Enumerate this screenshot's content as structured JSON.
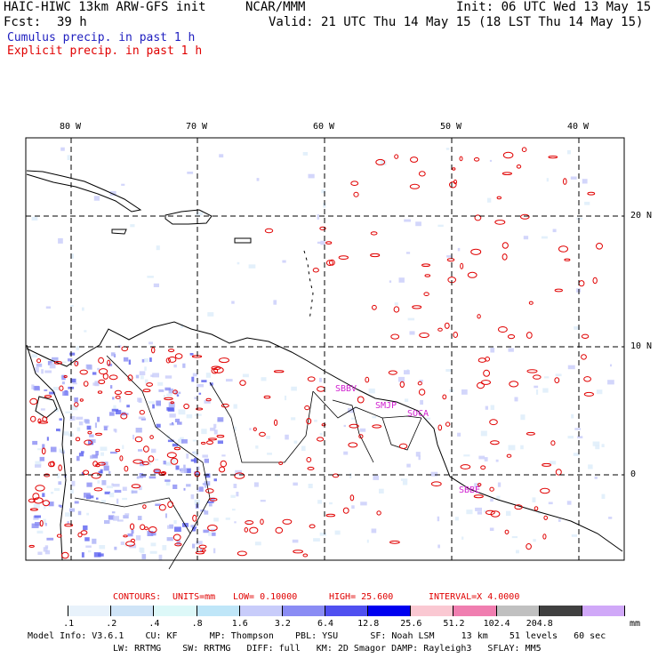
{
  "header": {
    "model_title": "HAIC-HIWC 13km ARW-GFS init",
    "center": "NCAR/MMM",
    "init": "Init: 06 UTC Wed 13 May 15",
    "fcst_label": "Fcst:",
    "fcst_value": "39 h",
    "valid": "Valid: 21 UTC Thu 14 May 15 (18 LST Thu 14 May 15)",
    "cumulus_label": "Cumulus precip. in past 1 h",
    "explicit_label": "Explicit precip. in past 1 h"
  },
  "map": {
    "lon_labels": [
      "80 W",
      "70 W",
      "60 W",
      "50 W",
      "40 W"
    ],
    "lat_labels": [
      "20 N",
      "10 N",
      "0"
    ],
    "stations": [
      "SBBV",
      "SMJP",
      "SOCA",
      "SBBE"
    ]
  },
  "contours": {
    "label": "CONTOURS:",
    "units": "UNITS=mm",
    "low": "LOW= 0.10000",
    "high": "HIGH= 25.600",
    "interval": "INTERVAL=X 4.0000"
  },
  "colorbar": {
    "unit": "mm",
    "ticks": [
      ".1",
      ".2",
      ".4",
      ".8",
      "1.6",
      "3.2",
      "6.4",
      "12.8",
      "25.6",
      "51.2",
      "102.4",
      "204.8"
    ],
    "colors": [
      "#ffffff",
      "#e8f2fb",
      "#cfe4f7",
      "#ddf8f8",
      "#bfe6f8",
      "#c8ccfa",
      "#8a8cf4",
      "#5050f0",
      "#0000f0",
      "#fac8d2",
      "#f07eb0",
      "#c0c0c0",
      "#404040",
      "#d0a8f8"
    ]
  },
  "footer": {
    "line1": "Model Info: V3.6.1    CU: KF      MP: Thompson    PBL: YSU      SF: Noah LSM     13 km    51 levels   60 sec",
    "line2": "LW: RRTMG    SW: RRTMG   DIFF: full   KM: 2D Smagor DAMP: Rayleigh3   SFLAY: MM5"
  }
}
